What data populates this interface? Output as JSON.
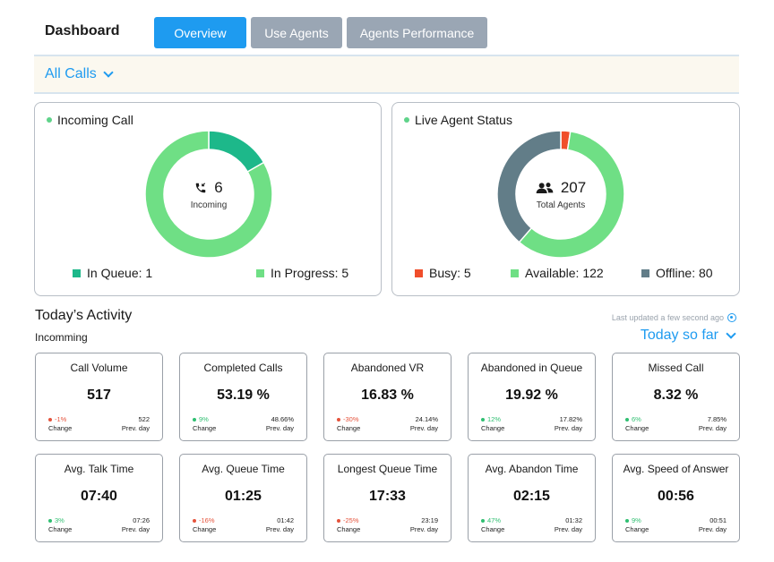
{
  "header": {
    "title": "Dashboard",
    "tabs": [
      {
        "label": "Overview",
        "active": true
      },
      {
        "label": "Use Agents",
        "active": false
      },
      {
        "label": "Agents Performance",
        "active": false
      }
    ]
  },
  "filter": {
    "label": "All Calls"
  },
  "incoming_call": {
    "title": "Incoming Call",
    "center_value": "6",
    "center_label": "Incoming",
    "legend": [
      {
        "label": "In Queue: 1",
        "value": 1,
        "color": "#1db88a"
      },
      {
        "label": "In Progress: 5",
        "value": 5,
        "color": "#6fdf85"
      }
    ]
  },
  "live_agent_status": {
    "title": "Live Agent Status",
    "center_value": "207",
    "center_label": "Total Agents",
    "legend": [
      {
        "label": "Busy: 5",
        "value": 5,
        "color": "#f04e2b"
      },
      {
        "label": "Available: 122",
        "value": 122,
        "color": "#6fdf85"
      },
      {
        "label": "Offline: 80",
        "value": 80,
        "color": "#627d88"
      }
    ]
  },
  "activity": {
    "title": "Today’s Activity",
    "updated": "Last updated a few second ago",
    "subtitle": "Incomming",
    "range": "Today so far",
    "cards": [
      {
        "title": "Call Volume",
        "value": "517",
        "change": "-1%",
        "trend": "neg",
        "change_label": "Change",
        "prev": "522",
        "prev_label": "Prev. day"
      },
      {
        "title": "Completed Calls",
        "value": "53.19 %",
        "change": "9%",
        "trend": "pos",
        "change_label": "Change",
        "prev": "48.66%",
        "prev_label": "Prev. day"
      },
      {
        "title": "Abandoned VR",
        "value": "16.83 %",
        "change": "-30%",
        "trend": "neg",
        "change_label": "Change",
        "prev": "24.14%",
        "prev_label": "Prev. day"
      },
      {
        "title": "Abandoned in Queue",
        "value": "19.92 %",
        "change": "12%",
        "trend": "pos",
        "change_label": "Change",
        "prev": "17.82%",
        "prev_label": "Prev. day"
      },
      {
        "title": "Missed Call",
        "value": "8.32 %",
        "change": "6%",
        "trend": "pos",
        "change_label": "Change",
        "prev": "7.85%",
        "prev_label": "Prev. day"
      },
      {
        "title": "Avg. Talk Time",
        "value": "07:40",
        "change": "3%",
        "trend": "pos",
        "change_label": "Change",
        "prev": "07:26",
        "prev_label": "Prev. day"
      },
      {
        "title": "Avg. Queue Time",
        "value": "01:25",
        "change": "-16%",
        "trend": "neg",
        "change_label": "Change",
        "prev": "01:42",
        "prev_label": "Prev. day"
      },
      {
        "title": "Longest Queue Time",
        "value": "17:33",
        "change": "-25%",
        "trend": "neg",
        "change_label": "Change",
        "prev": "23:19",
        "prev_label": "Prev. day"
      },
      {
        "title": "Avg. Abandon Time",
        "value": "02:15",
        "change": "47%",
        "trend": "pos",
        "change_label": "Change",
        "prev": "01:32",
        "prev_label": "Prev. day"
      },
      {
        "title": "Avg. Speed of Answer",
        "value": "00:56",
        "change": "9%",
        "trend": "pos",
        "change_label": "Change",
        "prev": "00:51",
        "prev_label": "Prev. day"
      }
    ]
  }
}
